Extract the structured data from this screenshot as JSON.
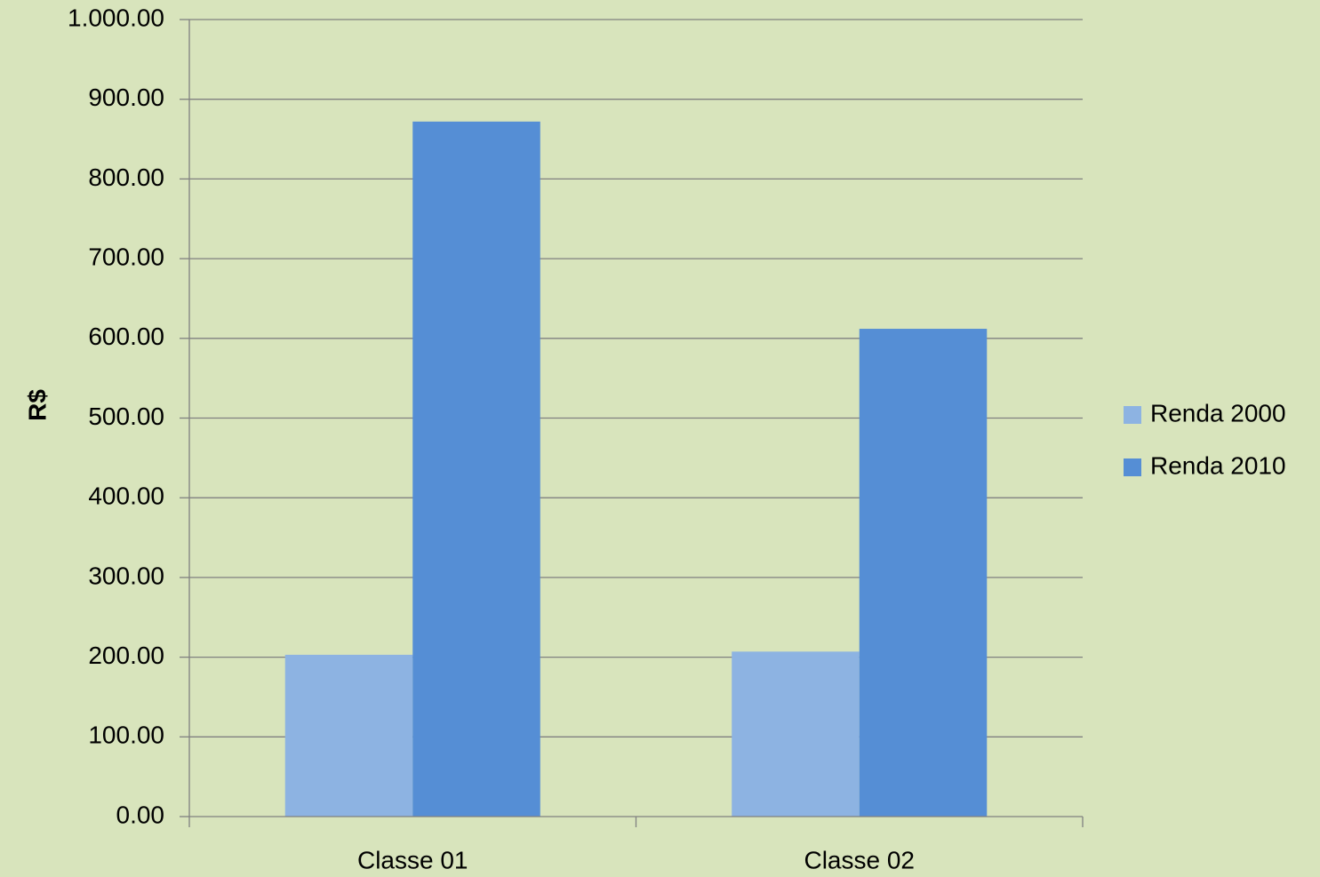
{
  "chart_data": {
    "type": "bar",
    "title": "",
    "xlabel": "",
    "ylabel": "R$",
    "ylim": [
      0,
      1000
    ],
    "yticks": [
      "0.00",
      "100.00",
      "200.00",
      "300.00",
      "400.00",
      "500.00",
      "600.00",
      "700.00",
      "800.00",
      "900.00",
      "1.000.00"
    ],
    "grid": true,
    "legend_position": "right",
    "categories": [
      "Classe 01",
      "Classe 02"
    ],
    "series": [
      {
        "name": "Renda 2000",
        "values": [
          203,
          207
        ],
        "color": "#8db3e2"
      },
      {
        "name": "Renda 2010",
        "values": [
          872,
          612
        ],
        "color": "#558ed5"
      }
    ],
    "background": "#d8e4bc",
    "gridColor": "#808080"
  }
}
